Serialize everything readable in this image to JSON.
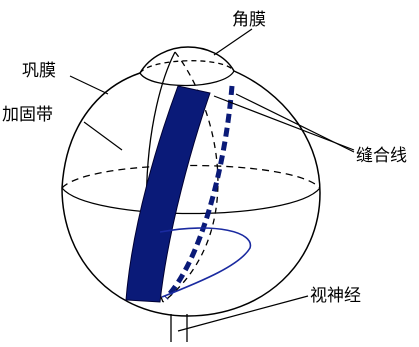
{
  "labels": {
    "cornea": "角膜",
    "sclera": "巩膜",
    "encircling_band": "加固带",
    "suture_lines": "缝合线",
    "optic_nerve": "视神经"
  },
  "colors": {
    "outline": "#000000",
    "band": "#0a1a78",
    "band_edge": "#000033",
    "suture": "#0a1a78",
    "loop": "#1a2aa0"
  }
}
